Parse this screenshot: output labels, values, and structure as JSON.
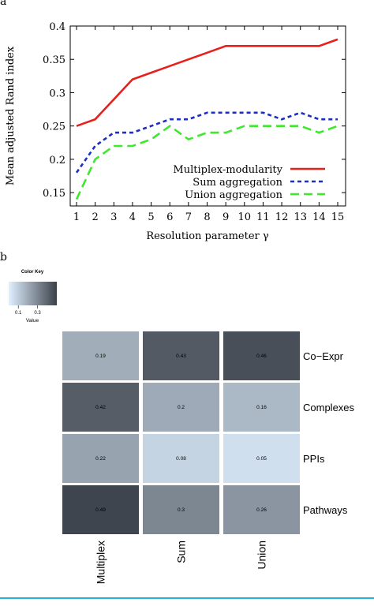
{
  "panels": {
    "a": "a",
    "b": "b"
  },
  "colors": {
    "multiplex": "#e8201c",
    "sum": "#1b2fc4",
    "union": "#3ee82c",
    "rule": "#27b3d9"
  },
  "chart_data": [
    {
      "type": "line",
      "xlabel": "Resolution parameter γ",
      "ylabel": "Mean adjusted Rand index",
      "xlim": [
        1,
        15
      ],
      "ylim": [
        0.13,
        0.4
      ],
      "x": [
        1,
        2,
        3,
        4,
        5,
        6,
        7,
        8,
        9,
        10,
        11,
        12,
        13,
        14,
        15
      ],
      "x_ticks": [
        "1",
        "2",
        "3",
        "4",
        "5",
        "6",
        "7",
        "8",
        "9",
        "10",
        "11",
        "12",
        "13",
        "14",
        "15"
      ],
      "y_ticks": [
        {
          "value": 0.4,
          "label": "0.4"
        },
        {
          "value": 0.35,
          "label": "0.35"
        },
        {
          "value": 0.3,
          "label": "0.3"
        },
        {
          "value": 0.25,
          "label": "0.25"
        },
        {
          "value": 0.2,
          "label": "0.2"
        },
        {
          "value": 0.15,
          "label": "0.15"
        }
      ],
      "grid": false,
      "legend_position": "bottom-right",
      "series": [
        {
          "name": "Multiplex-modularity",
          "style": "solid",
          "color": "#e8201c",
          "values": [
            0.25,
            0.26,
            0.29,
            0.32,
            0.33,
            0.34,
            0.35,
            0.36,
            0.37,
            0.37,
            0.37,
            0.37,
            0.37,
            0.37,
            0.38
          ]
        },
        {
          "name": "Sum aggregation",
          "style": "dotted",
          "color": "#1b2fc4",
          "values": [
            0.18,
            0.22,
            0.24,
            0.24,
            0.25,
            0.26,
            0.26,
            0.27,
            0.27,
            0.27,
            0.27,
            0.26,
            0.27,
            0.26,
            0.26
          ]
        },
        {
          "name": "Union aggregation",
          "style": "dashed",
          "color": "#3ee82c",
          "values": [
            0.14,
            0.2,
            0.22,
            0.22,
            0.23,
            0.25,
            0.23,
            0.24,
            0.24,
            0.25,
            0.25,
            0.25,
            0.25,
            0.24,
            0.25
          ]
        }
      ]
    },
    {
      "type": "heatmap",
      "columns": [
        "Multiplex",
        "Sum",
        "Union"
      ],
      "rows": [
        "Co−Expr",
        "Complexes",
        "PPIs",
        "Pathways"
      ],
      "values": [
        [
          0.19,
          0.43,
          0.46
        ],
        [
          0.42,
          0.2,
          0.16
        ],
        [
          0.22,
          0.08,
          0.05
        ],
        [
          0.49,
          0.3,
          0.26
        ]
      ],
      "cell_labels": [
        [
          "0.19",
          "0.43",
          "0.46"
        ],
        [
          "0.42",
          "0.2",
          "0.16"
        ],
        [
          "0.22",
          "0.08",
          "0.05"
        ],
        [
          "0.49",
          "0.3",
          "0.26"
        ]
      ],
      "color_low": "#dff0ff",
      "color_high": "#3c414a",
      "value_range": [
        0.0,
        0.5
      ],
      "color_key": {
        "title": "Color Key",
        "xlabel": "Value",
        "ticks": [
          {
            "value": 0.1,
            "label": "0.1"
          },
          {
            "value": 0.3,
            "label": "0.3"
          }
        ]
      }
    }
  ]
}
